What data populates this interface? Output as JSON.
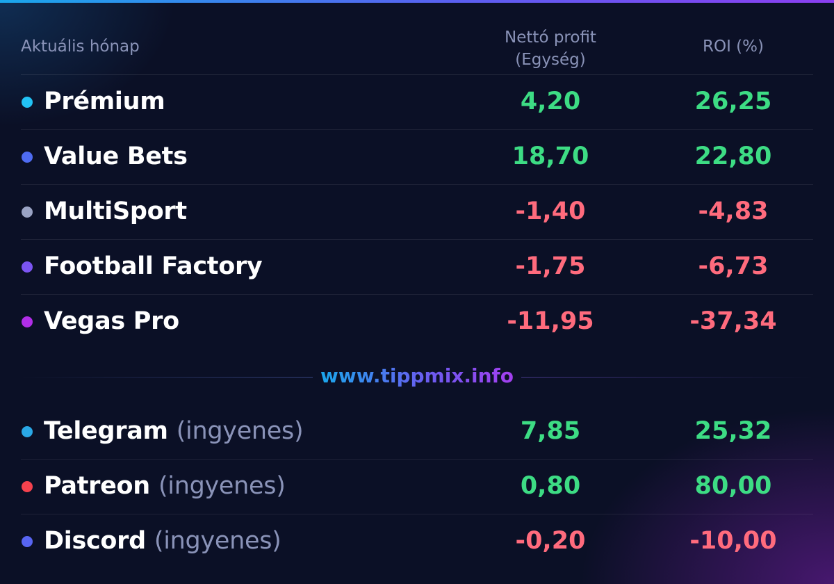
{
  "header": {
    "label": "Aktuális hónap",
    "profit_line1": "Nettó profit",
    "profit_line2": "(Egység)",
    "roi": "ROI (%)"
  },
  "rows": [
    {
      "name": "Prémium",
      "suffix": "",
      "profit": "4,20",
      "roi": "26,25",
      "dot_color": "#22c3f5",
      "profit_sign": "pos",
      "roi_sign": "pos"
    },
    {
      "name": "Value Bets",
      "suffix": "",
      "profit": "18,70",
      "roi": "22,80",
      "dot_color": "#4f6cf2",
      "profit_sign": "pos",
      "roi_sign": "pos"
    },
    {
      "name": "MultiSport",
      "suffix": "",
      "profit": "-1,40",
      "roi": "-4,83",
      "dot_color": "#9aa3c4",
      "profit_sign": "neg",
      "roi_sign": "neg"
    },
    {
      "name": "Football Factory",
      "suffix": "",
      "profit": "-1,75",
      "roi": "-6,73",
      "dot_color": "#7c55f2",
      "profit_sign": "neg",
      "roi_sign": "neg"
    },
    {
      "name": "Vegas Pro",
      "suffix": "",
      "profit": "-11,95",
      "roi": "-37,34",
      "dot_color": "#b12ee8",
      "profit_sign": "neg",
      "roi_sign": "neg"
    }
  ],
  "watermark": "www.tippmix.info",
  "free_rows": [
    {
      "name": "Telegram",
      "suffix": "(ingyenes)",
      "profit": "7,85",
      "roi": "25,32",
      "dot_color": "#2aa8e6",
      "profit_sign": "pos",
      "roi_sign": "pos"
    },
    {
      "name": "Patreon",
      "suffix": "(ingyenes)",
      "profit": "0,80",
      "roi": "80,00",
      "dot_color": "#f5424e",
      "profit_sign": "pos",
      "roi_sign": "pos"
    },
    {
      "name": "Discord",
      "suffix": "(ingyenes)",
      "profit": "-0,20",
      "roi": "-10,00",
      "dot_color": "#5865f2",
      "profit_sign": "neg",
      "roi_sign": "neg"
    }
  ],
  "colors": {
    "positive": "#3ddc84",
    "negative": "#ff6b7d",
    "background": "#0b1026",
    "muted_text": "#8a93b8"
  }
}
